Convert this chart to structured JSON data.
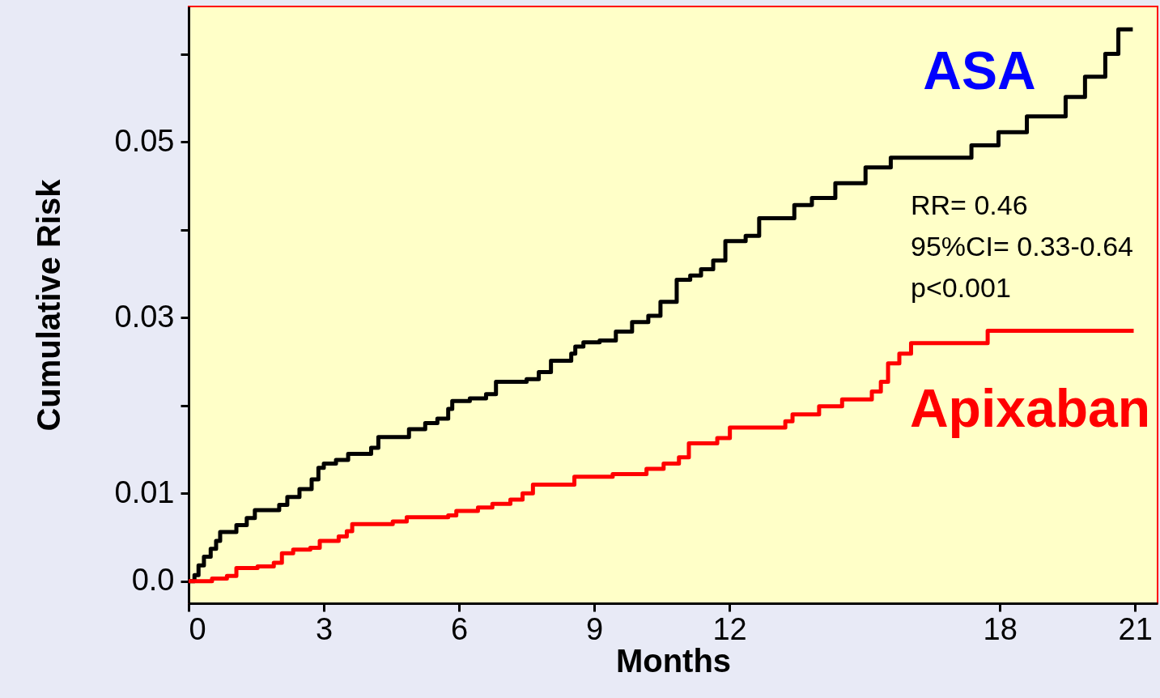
{
  "chart_data": {
    "type": "step",
    "xlabel": "Months",
    "ylabel": "Cumulative Risk",
    "xlim": [
      0,
      21.5
    ],
    "xticks": [
      0,
      3,
      6,
      9,
      12,
      18,
      21
    ],
    "ylim": [
      -0.0025,
      0.0654
    ],
    "yticks": [
      {
        "value": 0,
        "label": "0.0"
      },
      0.01,
      {
        "value": 0.02,
        "label": null
      },
      0.03,
      {
        "value": 0.04,
        "label": null
      },
      0.05,
      {
        "value": 0.06,
        "label": null
      }
    ],
    "grid": false,
    "line_style": "solid",
    "marker": "none",
    "annotations": [
      "RR= 0.46",
      "95%CI= 0.33-0.64",
      "p<0.001"
    ],
    "series": [
      {
        "name": "ASA",
        "color": "#000000",
        "x": [
          0,
          0.13,
          0.22,
          0.34,
          0.49,
          0.61,
          0.7,
          1.06,
          1.29,
          1.47,
          2.01,
          2.19,
          2.46,
          2.73,
          2.88,
          3.0,
          3.27,
          3.54,
          4.05,
          4.21,
          4.89,
          5.25,
          5.52,
          5.76,
          5.85,
          6.24,
          6.6,
          6.82,
          7.5,
          7.77,
          8.04,
          8.49,
          8.58,
          8.76,
          9.12,
          9.48,
          9.84,
          10.2,
          10.47,
          10.83,
          11.13,
          11.37,
          11.64,
          11.91,
          12.36,
          12.66,
          13.44,
          13.83,
          14.35,
          15.02,
          15.58,
          17.37,
          17.97,
          18.6,
          19.46,
          19.89,
          20.34,
          20.63,
          20.95
        ],
        "values": [
          0,
          0.0007,
          0.0018,
          0.0028,
          0.0037,
          0.0046,
          0.0056,
          0.0064,
          0.0072,
          0.0081,
          0.0087,
          0.0096,
          0.0105,
          0.0116,
          0.0129,
          0.0134,
          0.0138,
          0.0145,
          0.0152,
          0.0164,
          0.0173,
          0.018,
          0.0185,
          0.0196,
          0.0205,
          0.0208,
          0.0213,
          0.0227,
          0.023,
          0.0238,
          0.0251,
          0.0259,
          0.0267,
          0.0272,
          0.0274,
          0.0284,
          0.0295,
          0.0302,
          0.0318,
          0.0343,
          0.0348,
          0.0355,
          0.0365,
          0.0387,
          0.0393,
          0.0413,
          0.0428,
          0.0436,
          0.0453,
          0.0471,
          0.0482,
          0.0496,
          0.0511,
          0.0529,
          0.0551,
          0.0574,
          0.06,
          0.0628,
          0.0628
        ]
      },
      {
        "name": "Apixaban",
        "color": "#ff0000",
        "x": [
          0,
          0.52,
          0.85,
          1.06,
          1.53,
          1.89,
          2.07,
          2.32,
          2.7,
          2.91,
          3.33,
          3.51,
          3.63,
          4.53,
          4.84,
          5.76,
          5.94,
          6.42,
          6.74,
          7.14,
          7.41,
          7.64,
          8.56,
          9.41,
          10.16,
          10.54,
          10.88,
          11.1,
          11.73,
          12.01,
          13.24,
          13.4,
          13.99,
          14.5,
          15.16,
          15.36,
          15.52,
          15.77,
          16.03,
          17.73,
          20.97
        ],
        "values": [
          0,
          0.0003,
          0.0006,
          0.0015,
          0.0017,
          0.0021,
          0.0032,
          0.0036,
          0.0038,
          0.0046,
          0.0051,
          0.0057,
          0.0065,
          0.0068,
          0.0073,
          0.0075,
          0.008,
          0.0084,
          0.0088,
          0.0093,
          0.01,
          0.011,
          0.0119,
          0.0122,
          0.0128,
          0.0134,
          0.0141,
          0.0157,
          0.0163,
          0.0175,
          0.0182,
          0.019,
          0.0199,
          0.0207,
          0.0216,
          0.0227,
          0.0248,
          0.0259,
          0.0271,
          0.0285,
          0.0285
        ]
      }
    ]
  }
}
